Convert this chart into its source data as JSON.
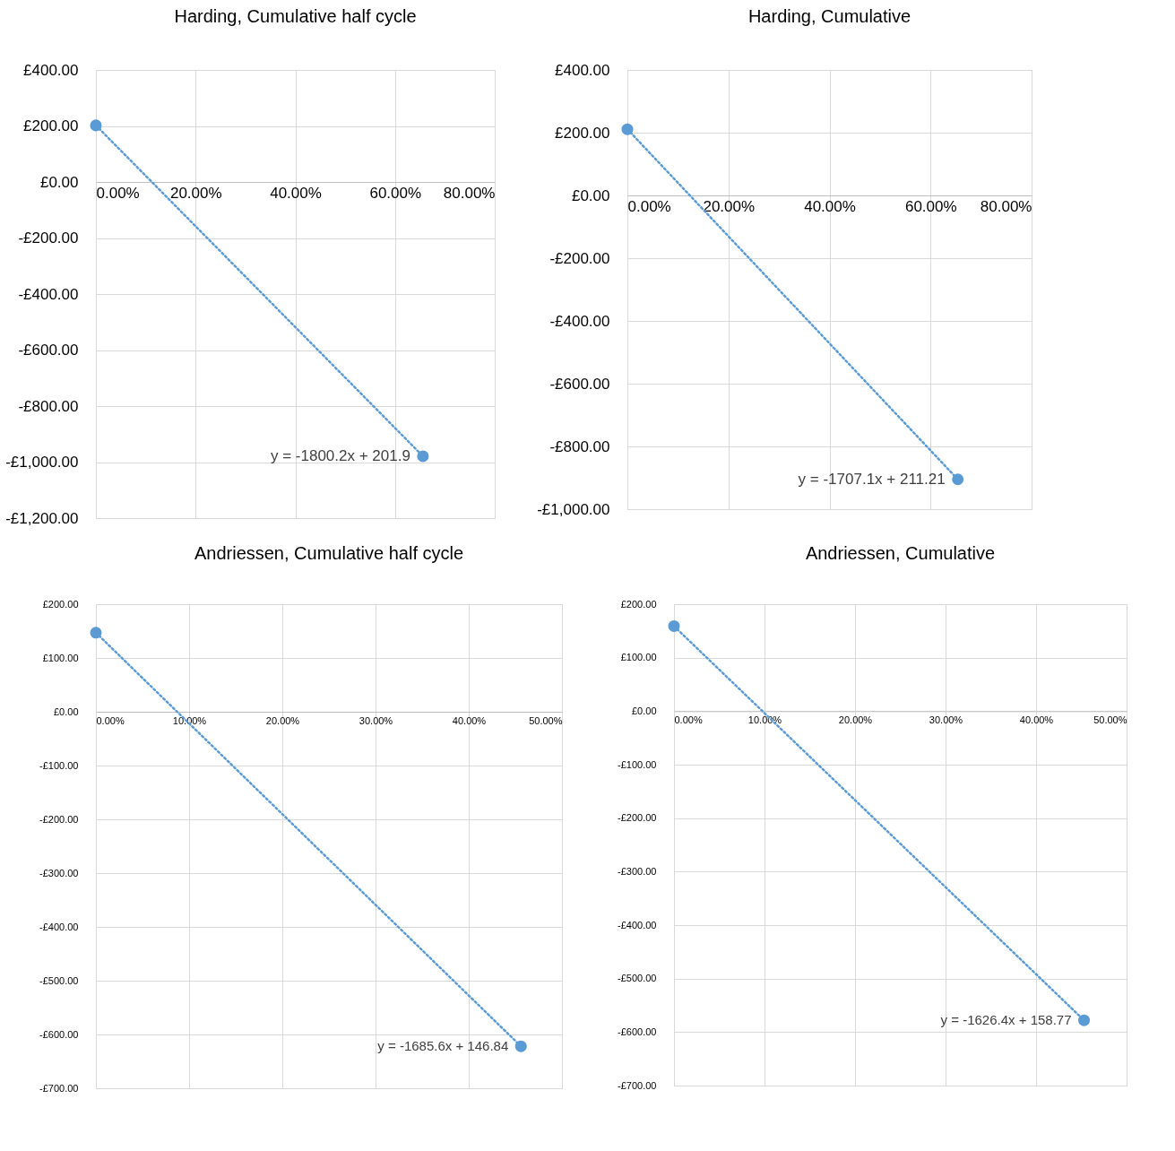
{
  "chart_data": [
    {
      "type": "scatter",
      "title": "Harding, Cumulative half cycle",
      "xlim": [
        0,
        0.8
      ],
      "ylim": [
        -1200,
        400
      ],
      "grid": true,
      "xticks": [
        {
          "value": 0,
          "label": "0.00%"
        },
        {
          "value": 0.2,
          "label": "20.00%"
        },
        {
          "value": 0.4,
          "label": "40.00%"
        },
        {
          "value": 0.6,
          "label": "60.00%"
        },
        {
          "value": 0.8,
          "label": "80.00%"
        }
      ],
      "yticks": [
        {
          "value": 400,
          "label": "£400.00"
        },
        {
          "value": 200,
          "label": "£200.00"
        },
        {
          "value": 0,
          "label": "£0.00"
        },
        {
          "value": -200,
          "label": "-£200.00"
        },
        {
          "value": -400,
          "label": "-£400.00"
        },
        {
          "value": -600,
          "label": "-£600.00"
        },
        {
          "value": -800,
          "label": "-£800.00"
        },
        {
          "value": -1000,
          "label": "-£1,000.00"
        },
        {
          "value": -1200,
          "label": "-£1,200.00"
        }
      ],
      "series": [
        {
          "type": "scatter",
          "marker": "circle",
          "color": "#5b9bd5",
          "x": [
            0,
            0.656
          ],
          "values": [
            202,
            -979
          ]
        },
        {
          "type": "line",
          "line_style": "dotted",
          "color": "#5b9bd5",
          "x": [
            0,
            0.656
          ],
          "values": [
            202,
            -979
          ]
        }
      ],
      "annotations": [
        {
          "text": "y = -1800.2x + 201.9",
          "x": 0.656,
          "y": -979
        }
      ]
    },
    {
      "type": "scatter",
      "title": "Harding, Cumulative",
      "xlim": [
        0,
        0.8
      ],
      "ylim": [
        -1000,
        400
      ],
      "grid": true,
      "xticks": [
        {
          "value": 0,
          "label": "0.00%"
        },
        {
          "value": 0.2,
          "label": "20.00%"
        },
        {
          "value": 0.4,
          "label": "40.00%"
        },
        {
          "value": 0.6,
          "label": "60.00%"
        },
        {
          "value": 0.8,
          "label": "80.00%"
        }
      ],
      "yticks": [
        {
          "value": 400,
          "label": "£400.00"
        },
        {
          "value": 200,
          "label": "£200.00"
        },
        {
          "value": 0,
          "label": "£0.00"
        },
        {
          "value": -200,
          "label": "-£200.00"
        },
        {
          "value": -400,
          "label": "-£400.00"
        },
        {
          "value": -600,
          "label": "-£600.00"
        },
        {
          "value": -800,
          "label": "-£800.00"
        },
        {
          "value": -1000,
          "label": "-£1,000.00"
        }
      ],
      "series": [
        {
          "type": "scatter",
          "marker": "circle",
          "color": "#5b9bd5",
          "x": [
            0,
            0.654
          ],
          "values": [
            211,
            -905
          ]
        },
        {
          "type": "line",
          "line_style": "dotted",
          "color": "#5b9bd5",
          "x": [
            0,
            0.654
          ],
          "values": [
            211,
            -905
          ]
        }
      ],
      "annotations": [
        {
          "text": "y = -1707.1x + 211.21",
          "x": 0.654,
          "y": -905
        }
      ]
    },
    {
      "type": "scatter",
      "title": "Andriessen, Cumulative half cycle",
      "xlim": [
        0,
        0.5
      ],
      "ylim": [
        -700,
        200
      ],
      "grid": true,
      "xticks": [
        {
          "value": 0,
          "label": "0.00%"
        },
        {
          "value": 0.1,
          "label": "10.00%"
        },
        {
          "value": 0.2,
          "label": "20.00%"
        },
        {
          "value": 0.3,
          "label": "30.00%"
        },
        {
          "value": 0.4,
          "label": "40.00%"
        },
        {
          "value": 0.5,
          "label": "50.00%"
        }
      ],
      "yticks": [
        {
          "value": 200,
          "label": "£200.00"
        },
        {
          "value": 100,
          "label": "£100.00"
        },
        {
          "value": 0,
          "label": "£0.00"
        },
        {
          "value": -100,
          "label": "-£100.00"
        },
        {
          "value": -200,
          "label": "-£200.00"
        },
        {
          "value": -300,
          "label": "-£300.00"
        },
        {
          "value": -400,
          "label": "-£400.00"
        },
        {
          "value": -500,
          "label": "-£500.00"
        },
        {
          "value": -600,
          "label": "-£600.00"
        },
        {
          "value": -700,
          "label": "-£700.00"
        }
      ],
      "series": [
        {
          "type": "scatter",
          "marker": "circle",
          "color": "#5b9bd5",
          "x": [
            0,
            0.456
          ],
          "values": [
            147,
            -622
          ]
        },
        {
          "type": "line",
          "line_style": "dotted",
          "color": "#5b9bd5",
          "x": [
            0,
            0.456
          ],
          "values": [
            147,
            -622
          ]
        }
      ],
      "annotations": [
        {
          "text": "y = -1685.6x + 146.84",
          "x": 0.456,
          "y": -622
        }
      ]
    },
    {
      "type": "scatter",
      "title": "Andriessen, Cumulative",
      "xlim": [
        0,
        0.5
      ],
      "ylim": [
        -700,
        200
      ],
      "grid": true,
      "xticks": [
        {
          "value": 0,
          "label": "0.00%"
        },
        {
          "value": 0.1,
          "label": "10.00%"
        },
        {
          "value": 0.2,
          "label": "20.00%"
        },
        {
          "value": 0.3,
          "label": "30.00%"
        },
        {
          "value": 0.4,
          "label": "40.00%"
        },
        {
          "value": 0.5,
          "label": "50.00%"
        }
      ],
      "yticks": [
        {
          "value": 200,
          "label": "£200.00"
        },
        {
          "value": 100,
          "label": "£100.00"
        },
        {
          "value": 0,
          "label": "£0.00"
        },
        {
          "value": -100,
          "label": "-£100.00"
        },
        {
          "value": -200,
          "label": "-£200.00"
        },
        {
          "value": -300,
          "label": "-£300.00"
        },
        {
          "value": -400,
          "label": "-£400.00"
        },
        {
          "value": -500,
          "label": "-£500.00"
        },
        {
          "value": -600,
          "label": "-£600.00"
        },
        {
          "value": -700,
          "label": "-£700.00"
        }
      ],
      "series": [
        {
          "type": "scatter",
          "marker": "circle",
          "color": "#5b9bd5",
          "x": [
            0,
            0.453
          ],
          "values": [
            159,
            -578
          ]
        },
        {
          "type": "line",
          "line_style": "dotted",
          "color": "#5b9bd5",
          "x": [
            0,
            0.453
          ],
          "values": [
            159,
            -578
          ]
        }
      ],
      "annotations": [
        {
          "text": "y = -1626.4x + 158.77",
          "x": 0.453,
          "y": -578
        }
      ]
    }
  ]
}
